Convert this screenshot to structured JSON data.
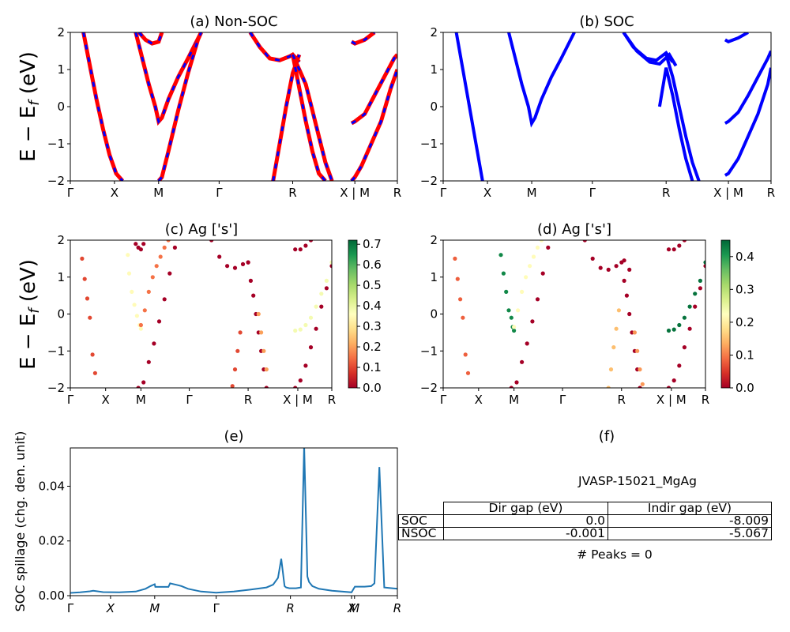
{
  "panels": {
    "a": {
      "title": "(a) Non-SOC",
      "ylabel": "E − E_f (eV)"
    },
    "b": {
      "title": "(b) SOC"
    },
    "c": {
      "title": "(c)  Ag ['s']",
      "ylabel": "E − E_f (eV)"
    },
    "d": {
      "title": "(d) Ag ['s']"
    },
    "e": {
      "title": "(e)",
      "ylabel": "SOC spillage (chg. den. unit)"
    },
    "f": {
      "title": "(f)",
      "name": "JVASP-15021_MgAg",
      "peaks": "# Peaks = 0"
    }
  },
  "kpath_labels": [
    "Γ",
    "X",
    "M",
    "Γ",
    "R",
    "X | M",
    "R"
  ],
  "spillage_kpath_labels": [
    "Γ",
    "X",
    "M",
    "Γ",
    "R",
    "X",
    "M",
    "R"
  ],
  "colors": {
    "nonsoc_line": "#ff0000",
    "nonsoc_dash": "#0000ff",
    "soc_line": "#0000ff",
    "spillage_line": "#1f77b4"
  },
  "colorbars": {
    "c": {
      "ticks": [
        "0.0",
        "0.1",
        "0.2",
        "0.3",
        "0.4",
        "0.5",
        "0.6",
        "0.7"
      ],
      "max": 0.72
    },
    "d": {
      "ticks": [
        "0.0",
        "0.1",
        "0.2",
        "0.3",
        "0.4"
      ],
      "max": 0.45
    }
  },
  "gap_table": {
    "headers": [
      "Dir gap (eV)",
      "Indir gap (eV)"
    ],
    "rows": [
      {
        "label": "SOC",
        "dir": "0.0",
        "indir": "-8.009"
      },
      {
        "label": "NSOC",
        "dir": "-0.001",
        "indir": "-5.067"
      }
    ]
  },
  "chart_data": [
    {
      "type": "line",
      "title": "(a) Non-SOC",
      "ylabel": "E − E_f (eV)",
      "ylim": [
        -2,
        2
      ],
      "y_ticks": [
        -2,
        -1,
        0,
        1,
        2
      ],
      "x_ticks": [
        "Γ",
        "X",
        "M",
        "Γ",
        "R",
        "X | M",
        "R"
      ],
      "x_tick_positions": [
        0,
        0.135,
        0.27,
        0.455,
        0.68,
        0.87,
        1.0
      ],
      "series": [
        {
          "x": [
            0.04,
            0.06,
            0.08,
            0.1,
            0.12,
            0.14,
            0.16
          ],
          "y": [
            2.0,
            1.1,
            0.2,
            -0.6,
            -1.3,
            -1.8,
            -2.0
          ]
        },
        {
          "x": [
            0.2,
            0.22,
            0.24,
            0.26,
            0.27,
            0.28,
            0.3,
            0.33,
            0.36,
            0.4
          ],
          "y": [
            2.0,
            1.3,
            0.6,
            0.0,
            -0.4,
            -0.3,
            0.2,
            0.8,
            1.3,
            2.0
          ]
        },
        {
          "x": [
            0.27,
            0.28,
            0.3,
            0.33,
            0.36,
            0.39,
            0.4
          ],
          "y": [
            -2.0,
            -1.9,
            -1.2,
            -0.1,
            0.9,
            1.8,
            2.0
          ]
        },
        {
          "x": [
            0.21,
            0.23,
            0.25,
            0.27,
            0.28
          ],
          "y": [
            2.0,
            1.8,
            1.7,
            1.75,
            2.0
          ]
        },
        {
          "x": [
            0.55,
            0.58,
            0.61,
            0.64,
            0.67,
            0.68,
            0.7
          ],
          "y": [
            2.0,
            1.6,
            1.3,
            1.25,
            1.35,
            1.4,
            1.2
          ]
        },
        {
          "x": [
            0.62,
            0.64,
            0.66,
            0.68,
            0.7
          ],
          "y": [
            -2.0,
            -1.0,
            0.0,
            0.9,
            1.4
          ]
        },
        {
          "x": [
            0.68,
            0.7,
            0.72,
            0.74,
            0.76,
            0.78
          ],
          "y": [
            1.4,
            0.5,
            -0.4,
            -1.2,
            -1.8,
            -2.0
          ]
        },
        {
          "x": [
            0.68,
            0.72,
            0.74,
            0.76,
            0.78,
            0.8
          ],
          "y": [
            1.4,
            0.6,
            -0.1,
            -0.8,
            -1.5,
            -2.0
          ]
        },
        {
          "x": [
            0.86,
            0.87,
            0.89,
            0.92,
            0.95,
            0.98,
            1.0
          ],
          "y": [
            -2.0,
            -1.9,
            -1.6,
            -1.0,
            -0.4,
            0.5,
            1.0
          ]
        },
        {
          "x": [
            0.86,
            0.87,
            0.9,
            0.93,
            0.96,
            0.99,
            1.0
          ],
          "y": [
            -0.45,
            -0.4,
            -0.2,
            0.3,
            0.8,
            1.3,
            1.4
          ]
        },
        {
          "x": [
            0.86,
            0.87,
            0.9,
            0.93
          ],
          "y": [
            1.75,
            1.7,
            1.8,
            2.0
          ]
        }
      ]
    },
    {
      "type": "line",
      "title": "(b) SOC",
      "ylim": [
        -2,
        2
      ],
      "y_ticks": [
        -2,
        -1,
        0,
        1,
        2
      ],
      "x_ticks": [
        "Γ",
        "X",
        "M",
        "Γ",
        "R",
        "X | M",
        "R"
      ],
      "x_tick_positions": [
        0,
        0.135,
        0.27,
        0.455,
        0.68,
        0.87,
        1.0
      ],
      "series": [
        {
          "x": [
            0.04,
            0.06,
            0.08,
            0.1,
            0.12
          ],
          "y": [
            2.0,
            1.0,
            0.0,
            -1.0,
            -2.0
          ]
        },
        {
          "x": [
            0.2,
            0.22,
            0.24,
            0.26,
            0.27,
            0.28,
            0.3,
            0.33,
            0.36,
            0.4
          ],
          "y": [
            2.0,
            1.3,
            0.6,
            0.0,
            -0.45,
            -0.3,
            0.2,
            0.8,
            1.3,
            2.0
          ]
        },
        {
          "x": [
            0.55,
            0.58,
            0.62,
            0.65,
            0.68,
            0.7
          ],
          "y": [
            2.0,
            1.6,
            1.3,
            1.25,
            1.45,
            1.2
          ]
        },
        {
          "x": [
            0.55,
            0.59,
            0.63,
            0.66,
            0.69,
            0.71
          ],
          "y": [
            2.0,
            1.5,
            1.2,
            1.15,
            1.4,
            1.1
          ]
        },
        {
          "x": [
            0.66,
            0.68,
            0.7,
            0.72,
            0.74,
            0.76
          ],
          "y": [
            0.0,
            1.05,
            0.3,
            -0.6,
            -1.4,
            -2.0
          ]
        },
        {
          "x": [
            0.68,
            0.7,
            0.72,
            0.74,
            0.76,
            0.78
          ],
          "y": [
            1.4,
            0.8,
            0.0,
            -0.8,
            -1.5,
            -2.0
          ]
        },
        {
          "x": [
            0.86,
            0.87,
            0.9,
            0.93,
            0.96,
            0.99,
            1.0
          ],
          "y": [
            -1.85,
            -1.8,
            -1.4,
            -0.8,
            -0.2,
            0.6,
            1.05
          ]
        },
        {
          "x": [
            0.86,
            0.87,
            0.9,
            0.93,
            0.96,
            0.99,
            1.0
          ],
          "y": [
            -0.45,
            -0.4,
            -0.15,
            0.3,
            0.8,
            1.3,
            1.5
          ]
        },
        {
          "x": [
            0.86,
            0.87,
            0.9,
            0.93
          ],
          "y": [
            1.8,
            1.75,
            1.85,
            2.0
          ]
        }
      ]
    },
    {
      "type": "scatter",
      "title": "(c)  Ag ['s']",
      "ylabel": "E − E_f (eV)",
      "ylim": [
        -2,
        2
      ],
      "colorbar_range": [
        0.0,
        0.72
      ],
      "x_ticks": [
        "Γ",
        "X",
        "M",
        "Γ",
        "R",
        "X | M",
        "R"
      ],
      "x_tick_positions": [
        0,
        0.135,
        0.27,
        0.455,
        0.68,
        0.87,
        1.0
      ],
      "bands": [
        {
          "x": [
            0.045,
            0.055,
            0.065,
            0.075,
            0.085,
            0.095
          ],
          "y": [
            1.5,
            0.95,
            0.42,
            -0.1,
            -1.1,
            -1.6
          ],
          "c": 0.1
        },
        {
          "x": [
            0.22,
            0.225,
            0.235,
            0.245,
            0.255,
            0.265,
            0.27
          ],
          "y": [
            1.6,
            1.1,
            0.6,
            0.25,
            -0.05,
            -0.3,
            -0.4
          ],
          "c": 0.35
        },
        {
          "x": [
            0.27,
            0.285,
            0.3,
            0.315,
            0.33,
            0.345,
            0.36,
            0.375
          ],
          "y": [
            -0.3,
            0.1,
            0.6,
            1.0,
            1.3,
            1.55,
            1.8,
            2.0
          ],
          "c": 0.15
        },
        {
          "x": [
            0.25,
            0.26,
            0.27,
            0.28
          ],
          "y": [
            1.9,
            1.8,
            1.75,
            1.9
          ],
          "c": 0.0
        },
        {
          "x": [
            0.26,
            0.28,
            0.3,
            0.32,
            0.34,
            0.36,
            0.38,
            0.4
          ],
          "y": [
            -2.0,
            -1.85,
            -1.3,
            -0.8,
            -0.2,
            0.4,
            1.1,
            1.8
          ],
          "c": 0.0
        },
        {
          "x": [
            0.54,
            0.57,
            0.6,
            0.63,
            0.66,
            0.68
          ],
          "y": [
            2.0,
            1.55,
            1.3,
            1.25,
            1.35,
            1.4
          ],
          "c": 0.0
        },
        {
          "x": [
            0.62,
            0.63,
            0.64,
            0.65
          ],
          "y": [
            -1.95,
            -1.5,
            -1.0,
            -0.5
          ],
          "c": 0.1
        },
        {
          "x": [
            0.68,
            0.69,
            0.7,
            0.71,
            0.72,
            0.73,
            0.74,
            0.75
          ],
          "y": [
            1.4,
            0.9,
            0.5,
            0.0,
            -0.5,
            -1.0,
            -1.5,
            -2.0
          ],
          "c": 0.0
        },
        {
          "x": [
            0.72,
            0.73,
            0.74,
            0.75
          ],
          "y": [
            0.0,
            -0.5,
            -1.0,
            -1.5
          ],
          "c": 0.2
        },
        {
          "x": [
            0.86,
            0.88,
            0.9,
            0.92,
            0.94,
            0.96,
            0.98,
            1.0
          ],
          "y": [
            -2.0,
            -1.8,
            -1.4,
            -0.9,
            -0.4,
            0.2,
            0.7,
            1.3
          ],
          "c": 0.0
        },
        {
          "x": [
            0.86,
            0.88,
            0.9,
            0.92,
            0.94,
            0.96,
            0.98,
            1.0
          ],
          "y": [
            -0.45,
            -0.42,
            -0.3,
            -0.1,
            0.2,
            0.55,
            0.9,
            1.4
          ],
          "c": 0.38
        },
        {
          "x": [
            0.86,
            0.88,
            0.9,
            0.92
          ],
          "y": [
            1.75,
            1.75,
            1.85,
            2.0
          ],
          "c": 0.0
        }
      ]
    },
    {
      "type": "scatter",
      "title": "(d) Ag ['s']",
      "ylim": [
        -2,
        2
      ],
      "colorbar_range": [
        0.0,
        0.45
      ],
      "x_ticks": [
        "Γ",
        "X",
        "M",
        "Γ",
        "R",
        "X | M",
        "R"
      ],
      "x_tick_positions": [
        0,
        0.135,
        0.27,
        0.455,
        0.68,
        0.87,
        1.0
      ],
      "bands": [
        {
          "x": [
            0.045,
            0.055,
            0.065,
            0.075,
            0.085,
            0.095
          ],
          "y": [
            1.5,
            0.95,
            0.4,
            -0.1,
            -1.1,
            -1.6
          ],
          "c": 0.08
        },
        {
          "x": [
            0.22,
            0.23,
            0.24,
            0.25,
            0.26,
            0.265,
            0.27
          ],
          "y": [
            1.6,
            1.1,
            0.6,
            0.1,
            -0.1,
            -0.35,
            -0.45
          ],
          "c": 0.42
        },
        {
          "x": [
            0.27,
            0.285,
            0.3,
            0.315,
            0.33,
            0.345,
            0.36,
            0.375
          ],
          "y": [
            -0.35,
            0.1,
            0.6,
            1.0,
            1.3,
            1.55,
            1.8,
            2.0
          ],
          "c": 0.22
        },
        {
          "x": [
            0.26,
            0.28,
            0.3,
            0.32,
            0.34,
            0.36,
            0.38,
            0.4
          ],
          "y": [
            -2.0,
            -1.85,
            -1.3,
            -0.8,
            -0.2,
            0.4,
            1.1,
            1.8
          ],
          "c": 0.0
        },
        {
          "x": [
            0.54,
            0.57,
            0.6,
            0.63,
            0.66,
            0.69,
            0.71
          ],
          "y": [
            2.0,
            1.5,
            1.25,
            1.2,
            1.3,
            1.45,
            1.2
          ],
          "c": 0.0
        },
        {
          "x": [
            0.63,
            0.64,
            0.65,
            0.66,
            0.67
          ],
          "y": [
            -2.0,
            -1.5,
            -0.9,
            -0.4,
            0.1
          ],
          "c": 0.15
        },
        {
          "x": [
            0.68,
            0.69,
            0.7,
            0.71,
            0.72,
            0.73,
            0.74,
            0.75
          ],
          "y": [
            1.4,
            0.9,
            0.5,
            0.0,
            -0.5,
            -1.0,
            -1.5,
            -2.0
          ],
          "c": 0.0
        },
        {
          "x": [
            0.73,
            0.74,
            0.75,
            0.76
          ],
          "y": [
            -0.5,
            -1.0,
            -1.5,
            -1.9
          ],
          "c": 0.12
        },
        {
          "x": [
            0.86,
            0.88,
            0.9,
            0.92,
            0.94,
            0.96,
            0.98,
            1.0
          ],
          "y": [
            -2.0,
            -1.8,
            -1.4,
            -0.9,
            -0.4,
            0.2,
            0.7,
            1.3
          ],
          "c": 0.0
        },
        {
          "x": [
            0.86,
            0.88,
            0.9,
            0.92,
            0.94,
            0.96,
            0.98,
            1.0
          ],
          "y": [
            -0.45,
            -0.42,
            -0.3,
            -0.1,
            0.2,
            0.55,
            0.9,
            1.4
          ],
          "c": 0.44
        },
        {
          "x": [
            0.86,
            0.88,
            0.9,
            0.92
          ],
          "y": [
            1.75,
            1.75,
            1.85,
            2.0
          ],
          "c": 0.0
        }
      ]
    },
    {
      "type": "line",
      "title": "(e)",
      "ylabel": "SOC spillage (chg. den. unit)",
      "ylim": [
        0,
        0.054
      ],
      "y_ticks": [
        0.0,
        0.02,
        0.04
      ],
      "x_ticks": [
        "Γ",
        "X",
        "M",
        "Γ",
        "R",
        "X",
        "M",
        "R"
      ],
      "x_tick_positions": [
        0,
        0.123,
        0.258,
        0.446,
        0.673,
        0.86,
        0.869,
        1.0
      ],
      "x": [
        0,
        0.03,
        0.06,
        0.07,
        0.1,
        0.15,
        0.2,
        0.23,
        0.245,
        0.258,
        0.26,
        0.28,
        0.3,
        0.305,
        0.33,
        0.34,
        0.36,
        0.4,
        0.446,
        0.5,
        0.55,
        0.6,
        0.62,
        0.635,
        0.645,
        0.655,
        0.66,
        0.67,
        0.69,
        0.705,
        0.715,
        0.725,
        0.73,
        0.74,
        0.76,
        0.8,
        0.86,
        0.87,
        0.9,
        0.92,
        0.93,
        0.945,
        0.96,
        0.975,
        1.0
      ],
      "y": [
        0.001,
        0.0012,
        0.0016,
        0.0018,
        0.0013,
        0.0012,
        0.0015,
        0.0025,
        0.0035,
        0.0042,
        0.0032,
        0.0032,
        0.0032,
        0.0045,
        0.0038,
        0.0035,
        0.0025,
        0.0015,
        0.0011,
        0.0015,
        0.0022,
        0.003,
        0.004,
        0.0065,
        0.0135,
        0.0035,
        0.003,
        0.0027,
        0.0027,
        0.003,
        0.055,
        0.007,
        0.005,
        0.0035,
        0.0025,
        0.0018,
        0.0012,
        0.0033,
        0.0033,
        0.0035,
        0.0045,
        0.047,
        0.003,
        0.0028,
        0.0025
      ]
    }
  ]
}
